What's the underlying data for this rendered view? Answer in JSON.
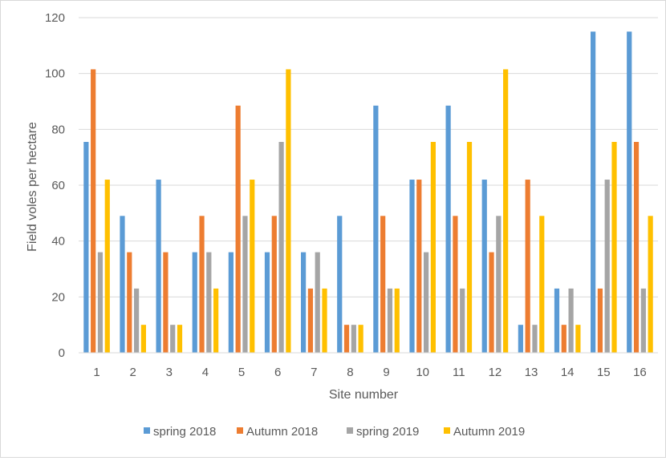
{
  "chart_data": {
    "type": "bar",
    "title": "",
    "xlabel": "Site number",
    "ylabel": "Field voles per hectare",
    "ylim": [
      0,
      120
    ],
    "yticks": [
      0,
      20,
      40,
      60,
      80,
      100,
      120
    ],
    "grid": true,
    "legend_position": "bottom",
    "categories": [
      "1",
      "2",
      "3",
      "4",
      "5",
      "6",
      "7",
      "8",
      "9",
      "10",
      "11",
      "12",
      "13",
      "14",
      "15",
      "16"
    ],
    "series": [
      {
        "name": "spring 2018",
        "color": "#5B9BD5",
        "values": [
          75.5,
          49,
          62,
          36,
          36,
          36,
          36,
          49,
          88.5,
          62,
          88.5,
          62,
          10,
          23,
          115,
          115
        ]
      },
      {
        "name": "Autumn 2018",
        "color": "#ED7D31",
        "values": [
          101.5,
          36,
          36,
          49,
          88.5,
          49,
          23,
          10,
          49,
          62,
          49,
          36,
          62,
          10,
          23,
          75.5
        ]
      },
      {
        "name": "spring 2019",
        "color": "#A5A5A5",
        "values": [
          36,
          23,
          10,
          36,
          49,
          75.5,
          36,
          10,
          23,
          36,
          23,
          49,
          10,
          23,
          62,
          23
        ]
      },
      {
        "name": "Autumn 2019",
        "color": "#FFC000",
        "values": [
          62,
          10,
          10,
          23,
          62,
          101.5,
          23,
          10,
          23,
          75.5,
          75.5,
          101.5,
          49,
          10,
          75.5,
          49
        ]
      }
    ]
  }
}
